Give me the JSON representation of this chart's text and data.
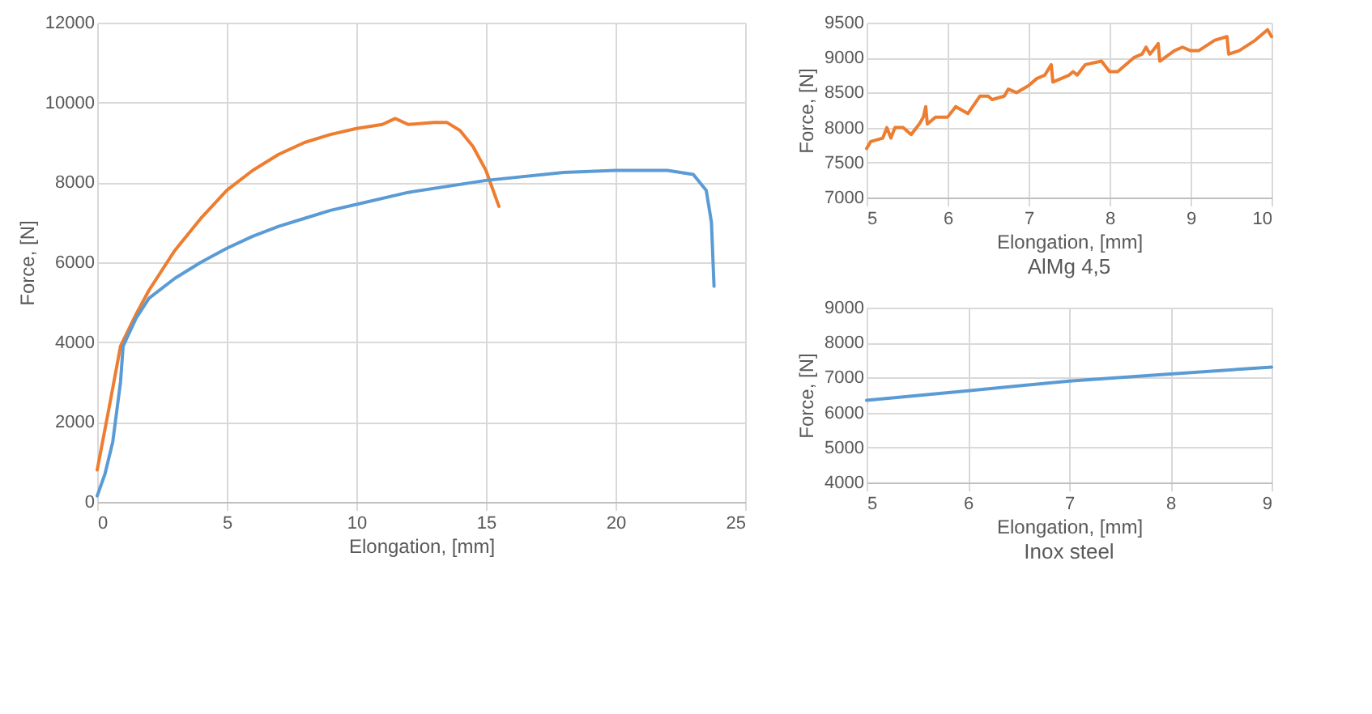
{
  "chart_data": [
    {
      "type": "line",
      "xlabel": "Elongation, [mm]",
      "ylabel": "Force, [N]",
      "xlim": [
        0,
        25
      ],
      "xticks": [
        0,
        5,
        10,
        15,
        20,
        25
      ],
      "ylim": [
        0,
        12000
      ],
      "yticks": [
        0,
        2000,
        4000,
        6000,
        8000,
        10000,
        12000
      ],
      "grid": true,
      "series": [
        {
          "color": "#ed7d31",
          "x": [
            0,
            0.5,
            0.9,
            1.5,
            2,
            3,
            4,
            5,
            6,
            7,
            8,
            9,
            10,
            11,
            11.5,
            12,
            13,
            13.5,
            14,
            14.5,
            15,
            15.5
          ],
          "values": [
            800,
            2500,
            3900,
            4700,
            5300,
            6300,
            7100,
            7800,
            8300,
            8700,
            9000,
            9200,
            9350,
            9450,
            9600,
            9450,
            9500,
            9500,
            9300,
            8900,
            8300,
            7400
          ]
        },
        {
          "color": "#5b9bd5",
          "x": [
            0,
            0.3,
            0.6,
            0.9,
            1,
            1.5,
            2,
            3,
            4,
            5,
            6,
            7,
            8,
            9,
            10,
            12,
            15,
            18,
            20,
            22,
            23,
            23.5,
            23.7,
            23.8
          ],
          "values": [
            150,
            700,
            1500,
            3000,
            3900,
            4600,
            5100,
            5600,
            6000,
            6350,
            6650,
            6900,
            7100,
            7300,
            7450,
            7750,
            8050,
            8250,
            8300,
            8300,
            8200,
            7800,
            7000,
            5400
          ]
        }
      ]
    },
    {
      "type": "line",
      "title": "AlMg 4,5",
      "xlabel": "Elongation, [mm]",
      "ylabel": "Force, [N]",
      "xlim": [
        5,
        10
      ],
      "xticks": [
        5,
        6,
        7,
        8,
        9,
        10
      ],
      "ylim": [
        7000,
        9500
      ],
      "yticks": [
        7000,
        7500,
        8000,
        8500,
        9000,
        9500
      ],
      "grid": true,
      "series": [
        {
          "color": "#ed7d31",
          "x": [
            5,
            5.05,
            5.2,
            5.25,
            5.3,
            5.35,
            5.45,
            5.55,
            5.65,
            5.7,
            5.73,
            5.75,
            5.85,
            6,
            6.1,
            6.25,
            6.4,
            6.5,
            6.55,
            6.7,
            6.75,
            6.85,
            7,
            7.1,
            7.2,
            7.28,
            7.3,
            7.5,
            7.55,
            7.6,
            7.7,
            7.9,
            8,
            8.1,
            8.3,
            8.4,
            8.45,
            8.5,
            8.6,
            8.62,
            8.8,
            8.9,
            9,
            9.1,
            9.3,
            9.45,
            9.47,
            9.6,
            9.8,
            9.95,
            10
          ],
          "values": [
            7700,
            7800,
            7850,
            8000,
            7850,
            8000,
            8000,
            7900,
            8050,
            8150,
            8300,
            8050,
            8150,
            8150,
            8300,
            8200,
            8450,
            8450,
            8400,
            8450,
            8550,
            8500,
            8600,
            8700,
            8750,
            8900,
            8650,
            8750,
            8800,
            8750,
            8900,
            8950,
            8800,
            8800,
            9000,
            9050,
            9150,
            9050,
            9200,
            8950,
            9100,
            9150,
            9100,
            9100,
            9250,
            9300,
            9050,
            9100,
            9250,
            9400,
            9300
          ]
        }
      ]
    },
    {
      "type": "line",
      "title": "Inox steel",
      "xlabel": "Elongation, [mm]",
      "ylabel": "Force, [N]",
      "xlim": [
        5,
        9
      ],
      "xticks": [
        5,
        6,
        7,
        8,
        9
      ],
      "ylim": [
        4000,
        9000
      ],
      "yticks": [
        4000,
        5000,
        6000,
        7000,
        8000,
        9000
      ],
      "grid": true,
      "series": [
        {
          "color": "#5b9bd5",
          "x": [
            5,
            6,
            7,
            8,
            9
          ],
          "values": [
            6350,
            6620,
            6900,
            7100,
            7300
          ]
        }
      ]
    }
  ]
}
